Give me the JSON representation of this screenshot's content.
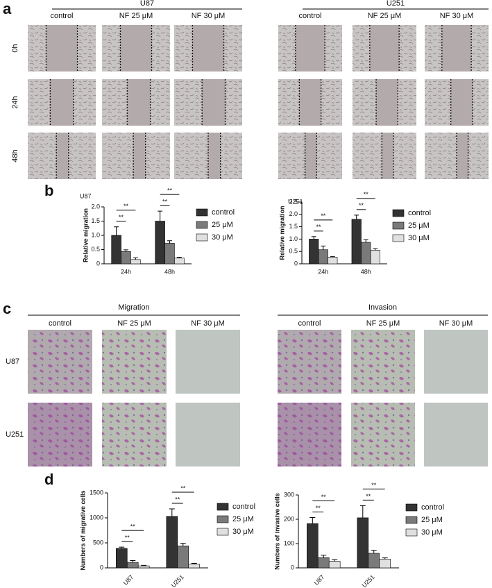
{
  "figure": {
    "panel_labels": [
      "a",
      "b",
      "c",
      "d"
    ],
    "wound": {
      "groups": [
        {
          "title": "U87",
          "columns": [
            "control",
            "NF 25 μM",
            "NF 30 μM"
          ]
        },
        {
          "title": "U251",
          "columns": [
            "control",
            "NF 25 μM",
            "NF 30 μM"
          ]
        }
      ],
      "rows": [
        "0h",
        "24h",
        "48h"
      ]
    },
    "transwell": {
      "groups": [
        {
          "title": "Migration",
          "columns": [
            "control",
            "NF 25 μM",
            "NF 30 μM"
          ]
        },
        {
          "title": "Invasion",
          "columns": [
            "control",
            "NF 25 μM",
            "NF 30 μM"
          ]
        }
      ],
      "rows": [
        "U87",
        "U251"
      ]
    }
  },
  "chart_data": [
    {
      "type": "bar",
      "title": "U87",
      "y_label": "Relative migration",
      "categories": [
        "24h",
        "48h"
      ],
      "series": [
        {
          "name": "control",
          "color": "#333333",
          "values": [
            1.0,
            1.5
          ],
          "errors": [
            0.3,
            0.35
          ]
        },
        {
          "name": "25 μM",
          "color": "#7a7a7a",
          "values": [
            0.43,
            0.72
          ],
          "errors": [
            0.06,
            0.09
          ]
        },
        {
          "name": "30 μM",
          "color": "#e0e0e0",
          "values": [
            0.15,
            0.2
          ],
          "errors": [
            0.06,
            0.03
          ]
        }
      ],
      "ylim": [
        0,
        2
      ],
      "yticks": [
        0,
        0.5,
        {
          "value": 1,
          "label": "1.0"
        },
        1.5,
        {
          "value": 2,
          "label": "2.0"
        }
      ],
      "annotations": [
        "**",
        "**",
        "**",
        "**"
      ]
    },
    {
      "type": "bar",
      "title": "U251",
      "y_label": "Relative migration",
      "categories": [
        "24h",
        "48h"
      ],
      "series": [
        {
          "name": "control",
          "color": "#333333",
          "values": [
            1.0,
            1.8
          ],
          "errors": [
            0.1,
            0.17
          ]
        },
        {
          "name": "25 μM",
          "color": "#7a7a7a",
          "values": [
            0.57,
            0.87
          ],
          "errors": [
            0.15,
            0.1
          ]
        },
        {
          "name": "30 μM",
          "color": "#e0e0e0",
          "values": [
            0.27,
            0.55
          ],
          "errors": [
            0.02,
            0.06
          ]
        }
      ],
      "ylim": [
        0,
        2.5
      ],
      "yticks": [
        0,
        0.5,
        {
          "value": 1,
          "label": "1.0"
        },
        1.5,
        {
          "value": 2,
          "label": "2.0"
        },
        2.5
      ],
      "annotations": [
        "**",
        "**",
        "**",
        "**"
      ]
    },
    {
      "type": "bar",
      "y_label": "Numbers of migrative cells",
      "categories": [
        "U87",
        "U251"
      ],
      "series": [
        {
          "name": "control",
          "color": "#333333",
          "values": [
            390,
            1030
          ],
          "errors": [
            25,
            150
          ]
        },
        {
          "name": "25 μM",
          "color": "#7a7a7a",
          "values": [
            110,
            440
          ],
          "errors": [
            35,
            50
          ]
        },
        {
          "name": "30 μM",
          "color": "#e0e0e0",
          "values": [
            40,
            75
          ],
          "errors": [
            10,
            15
          ]
        }
      ],
      "ylim": [
        0,
        1500
      ],
      "yticks": [
        0,
        500,
        1000,
        1500
      ],
      "annotations": [
        "**",
        "**",
        "**",
        "**"
      ]
    },
    {
      "type": "bar",
      "y_label": "Numbers of invasive cells",
      "categories": [
        "U87",
        "U251"
      ],
      "series": [
        {
          "name": "control",
          "color": "#333333",
          "values": [
            182,
            206
          ],
          "errors": [
            25,
            50
          ]
        },
        {
          "name": "25 μM",
          "color": "#7a7a7a",
          "values": [
            42,
            60
          ],
          "errors": [
            10,
            12
          ]
        },
        {
          "name": "30 μM",
          "color": "#e0e0e0",
          "values": [
            27,
            36
          ],
          "errors": [
            7,
            5
          ]
        }
      ],
      "ylim": [
        0,
        300
      ],
      "yticks": [
        0,
        100,
        200,
        300
      ],
      "annotations": [
        "**",
        "**",
        "**",
        "**"
      ]
    }
  ]
}
